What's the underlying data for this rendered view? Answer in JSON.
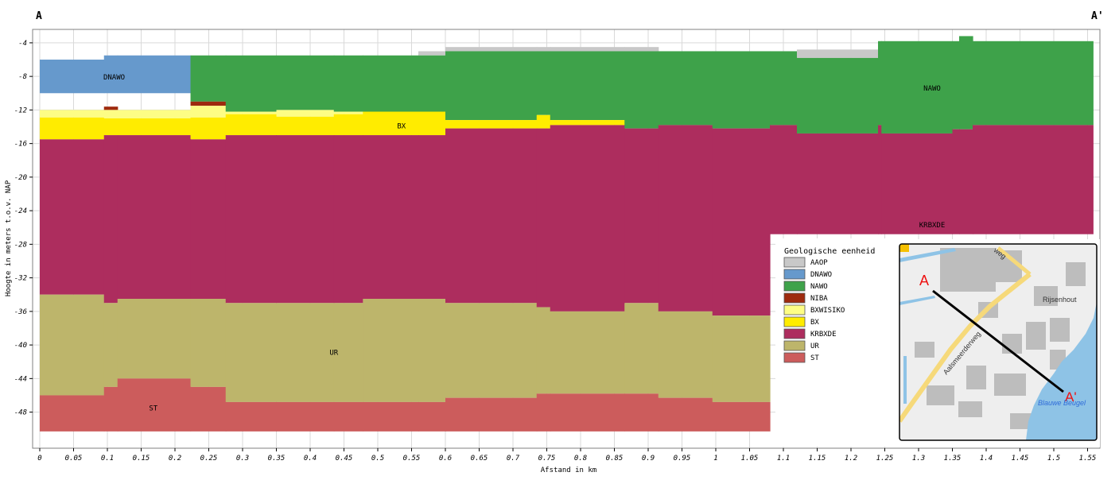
{
  "chart_data": {
    "type": "area",
    "title": "",
    "xlabel": "Afstand in km",
    "ylabel": "Hoogte in meters t.o.v. NAP",
    "xlim": [
      0,
      1.56
    ],
    "ylim": [
      -52.3,
      -2.4
    ],
    "grid": true,
    "section_start": "A",
    "section_end": "A'",
    "x_ticks": [
      "0",
      "0.05",
      "0.1",
      "0.15",
      "0.2",
      "0.25",
      "0.3",
      "0.35",
      "0.4",
      "0.45",
      "0.5",
      "0.55",
      "0.6",
      "0.65",
      "0.7",
      "0.75",
      "0.8",
      "0.85",
      "0.9",
      "0.95",
      "1",
      "1.05",
      "1.1",
      "1.15",
      "1.2",
      "1.25",
      "1.3",
      "1.35",
      "1.4",
      "1.45",
      "1.5",
      "1.55"
    ],
    "y_ticks": [
      "-4",
      "-8",
      "-12",
      "-16",
      "-20",
      "-24",
      "-28",
      "-32",
      "-36",
      "-40",
      "-44",
      "-48"
    ],
    "legend_title": "Geologische eenheid",
    "legend_position": "bottom-right",
    "units": [
      {
        "name": "AAOP",
        "color": "#c8c8c8"
      },
      {
        "name": "DNAWO",
        "color": "#6699cc"
      },
      {
        "name": "NAWO",
        "color": "#3ea24a"
      },
      {
        "name": "NIBA",
        "color": "#9e2a0e"
      },
      {
        "name": "BXWISIKO",
        "color": "#fdfd85"
      },
      {
        "name": "BX",
        "color": "#ffec00"
      },
      {
        "name": "KRBXDE",
        "color": "#ad2d5e"
      },
      {
        "name": "UR",
        "color": "#bdb56b"
      },
      {
        "name": "ST",
        "color": "#cc5c5c"
      }
    ],
    "columns": [
      {
        "x": [
          0.0,
          0.095
        ],
        "layers": [
          [
            "DNAWO",
            -6.0,
            -10.0
          ],
          [
            "BXWISIKO",
            -12.0,
            -12.9
          ],
          [
            "BX",
            -12.9,
            -15.5
          ],
          [
            "KRBXDE",
            -15.5,
            -34.0
          ],
          [
            "UR",
            -34.0,
            -46.0
          ],
          [
            "ST",
            -46.0,
            -50.3
          ]
        ]
      },
      {
        "x": [
          0.095,
          0.115
        ],
        "layers": [
          [
            "DNAWO",
            -5.5,
            -10.0
          ],
          [
            "NIBA",
            -11.6,
            -12.0
          ],
          [
            "BXWISIKO",
            -12.0,
            -13.0
          ],
          [
            "BX",
            -13.0,
            -15.0
          ],
          [
            "KRBXDE",
            -15.0,
            -35.0
          ],
          [
            "UR",
            -35.0,
            -45.0
          ],
          [
            "ST",
            -45.0,
            -50.3
          ]
        ]
      },
      {
        "x": [
          0.115,
          0.223
        ],
        "layers": [
          [
            "DNAWO",
            -5.5,
            -10.0
          ],
          [
            "BXWISIKO",
            -12.0,
            -13.0
          ],
          [
            "BX",
            -13.0,
            -15.0
          ],
          [
            "KRBXDE",
            -15.0,
            -34.5
          ],
          [
            "UR",
            -34.5,
            -44.0
          ],
          [
            "ST",
            -44.0,
            -50.3
          ]
        ]
      },
      {
        "x": [
          0.223,
          0.275
        ],
        "layers": [
          [
            "NAWO",
            -5.5,
            -11.0
          ],
          [
            "NIBA",
            -11.0,
            -11.5
          ],
          [
            "BXWISIKO",
            -11.5,
            -12.9
          ],
          [
            "BX",
            -12.9,
            -15.5
          ],
          [
            "KRBXDE",
            -15.5,
            -34.5
          ],
          [
            "UR",
            -34.5,
            -45.0
          ],
          [
            "ST",
            -45.0,
            -50.3
          ]
        ]
      },
      {
        "x": [
          0.275,
          0.35
        ],
        "layers": [
          [
            "NAWO",
            -5.5,
            -12.2
          ],
          [
            "BXWISIKO",
            -12.2,
            -12.5
          ],
          [
            "BX",
            -12.5,
            -15.0
          ],
          [
            "KRBXDE",
            -15.0,
            -35.0
          ],
          [
            "UR",
            -35.0,
            -46.8
          ],
          [
            "ST",
            -46.8,
            -50.3
          ]
        ]
      },
      {
        "x": [
          0.35,
          0.435
        ],
        "layers": [
          [
            "NAWO",
            -5.5,
            -12.0
          ],
          [
            "BXWISIKO",
            -12.0,
            -12.8
          ],
          [
            "BX",
            -12.8,
            -15.0
          ],
          [
            "KRBXDE",
            -15.0,
            -35.0
          ],
          [
            "UR",
            -35.0,
            -46.8
          ],
          [
            "ST",
            -46.8,
            -50.3
          ]
        ]
      },
      {
        "x": [
          0.435,
          0.478
        ],
        "layers": [
          [
            "NAWO",
            -5.5,
            -12.2
          ],
          [
            "BXWISIKO",
            -12.2,
            -12.5
          ],
          [
            "BX",
            -12.5,
            -15.0
          ],
          [
            "KRBXDE",
            -15.0,
            -35.0
          ],
          [
            "UR",
            -35.0,
            -46.8
          ],
          [
            "ST",
            -46.8,
            -50.3
          ]
        ]
      },
      {
        "x": [
          0.478,
          0.56
        ],
        "layers": [
          [
            "NAWO",
            -5.5,
            -12.2
          ],
          [
            "BX",
            -12.2,
            -15.0
          ],
          [
            "KRBXDE",
            -15.0,
            -34.5
          ],
          [
            "UR",
            -34.5,
            -46.8
          ],
          [
            "ST",
            -46.8,
            -50.3
          ]
        ]
      },
      {
        "x": [
          0.56,
          0.6
        ],
        "layers": [
          [
            "AAOP",
            -5.0,
            -5.5
          ],
          [
            "NAWO",
            -5.5,
            -12.2
          ],
          [
            "BX",
            -12.2,
            -15.0
          ],
          [
            "KRBXDE",
            -15.0,
            -34.5
          ],
          [
            "UR",
            -34.5,
            -46.8
          ],
          [
            "ST",
            -46.8,
            -50.3
          ]
        ]
      },
      {
        "x": [
          0.6,
          0.735
        ],
        "layers": [
          [
            "AAOP",
            -4.5,
            -5.0
          ],
          [
            "NAWO",
            -5.0,
            -13.2
          ],
          [
            "BX",
            -13.2,
            -14.2
          ],
          [
            "KRBXDE",
            -14.2,
            -35.0
          ],
          [
            "UR",
            -35.0,
            -46.3
          ],
          [
            "ST",
            -46.3,
            -50.3
          ]
        ]
      },
      {
        "x": [
          0.735,
          0.755
        ],
        "layers": [
          [
            "AAOP",
            -4.5,
            -5.0
          ],
          [
            "NAWO",
            -5.0,
            -12.6
          ],
          [
            "BX",
            -12.6,
            -14.2
          ],
          [
            "KRBXDE",
            -14.2,
            -35.5
          ],
          [
            "UR",
            -35.5,
            -45.8
          ],
          [
            "ST",
            -45.8,
            -50.3
          ]
        ]
      },
      {
        "x": [
          0.755,
          0.865
        ],
        "layers": [
          [
            "AAOP",
            -4.5,
            -5.0
          ],
          [
            "NAWO",
            -5.0,
            -13.2
          ],
          [
            "BX",
            -13.2,
            -13.8
          ],
          [
            "KRBXDE",
            -13.8,
            -36.0
          ],
          [
            "UR",
            -36.0,
            -45.8
          ],
          [
            "ST",
            -45.8,
            -50.3
          ]
        ]
      },
      {
        "x": [
          0.865,
          0.915
        ],
        "layers": [
          [
            "AAOP",
            -4.5,
            -5.0
          ],
          [
            "NAWO",
            -5.0,
            -14.2
          ],
          [
            "KRBXDE",
            -14.2,
            -35.0
          ],
          [
            "UR",
            -35.0,
            -45.8
          ],
          [
            "ST",
            -45.8,
            -50.3
          ]
        ]
      },
      {
        "x": [
          0.915,
          0.995
        ],
        "layers": [
          [
            "NAWO",
            -5.0,
            -13.8
          ],
          [
            "KRBXDE",
            -13.8,
            -36.0
          ],
          [
            "UR",
            -36.0,
            -46.3
          ],
          [
            "ST",
            -46.3,
            -50.3
          ]
        ]
      },
      {
        "x": [
          0.995,
          1.08
        ],
        "layers": [
          [
            "NAWO",
            -5.0,
            -14.2
          ],
          [
            "KRBXDE",
            -14.2,
            -36.5
          ],
          [
            "UR",
            -36.5,
            -46.8
          ],
          [
            "ST",
            -46.8,
            -50.3
          ]
        ]
      },
      {
        "x": [
          1.08,
          1.12
        ],
        "layers": [
          [
            "NAWO",
            -5.0,
            -13.8
          ],
          [
            "KRBXDE",
            -13.8,
            -26.8
          ]
        ]
      },
      {
        "x": [
          1.12,
          1.24
        ],
        "layers": [
          [
            "AAOP",
            -4.8,
            -5.8
          ],
          [
            "NAWO",
            -5.8,
            -14.8
          ],
          [
            "KRBXDE",
            -14.8,
            -26.8
          ]
        ]
      },
      {
        "x": [
          1.24,
          1.245
        ],
        "layers": [
          [
            "NAWO",
            -3.8,
            -13.8
          ],
          [
            "KRBXDE",
            -13.8,
            -26.8
          ]
        ]
      },
      {
        "x": [
          1.245,
          1.35
        ],
        "layers": [
          [
            "NAWO",
            -3.8,
            -14.8
          ],
          [
            "KRBXDE",
            -14.8,
            -26.8
          ]
        ]
      },
      {
        "x": [
          1.35,
          1.36
        ],
        "layers": [
          [
            "NAWO",
            -3.8,
            -14.3
          ],
          [
            "KRBXDE",
            -14.3,
            -26.8
          ]
        ]
      },
      {
        "x": [
          1.36,
          1.38
        ],
        "layers": [
          [
            "NAWO",
            -3.2,
            -14.3
          ],
          [
            "KRBXDE",
            -14.3,
            -26.8
          ]
        ]
      },
      {
        "x": [
          1.38,
          1.558
        ],
        "layers": [
          [
            "NAWO",
            -3.8,
            -13.8
          ],
          [
            "KRBXDE",
            -13.8,
            -26.8
          ]
        ]
      }
    ],
    "annotations": [
      {
        "text": "DNAWO",
        "x": 0.11,
        "y": -8.1
      },
      {
        "text": "NAWO",
        "x": 1.32,
        "y": -9.4
      },
      {
        "text": "BX",
        "x": 0.535,
        "y": -13.9
      },
      {
        "text": "KRBXDE",
        "x": 1.32,
        "y": -25.7
      },
      {
        "text": "UR",
        "x": 0.435,
        "y": -40.9
      },
      {
        "text": "ST",
        "x": 0.168,
        "y": -47.5
      }
    ]
  },
  "inset_map": {
    "labels": [
      "A",
      "A'",
      "Rijsenhout",
      "Aalsmeerderweg",
      "weg",
      "Blauwe Beugel"
    ],
    "colors": {
      "water": "#8ec3e6",
      "road": "#f6d97a",
      "built": "#bdbdbd",
      "bg": "#eeeeee",
      "line": "#000000",
      "marker": "#ee1111",
      "water_label": "#2e6bd8"
    }
  }
}
